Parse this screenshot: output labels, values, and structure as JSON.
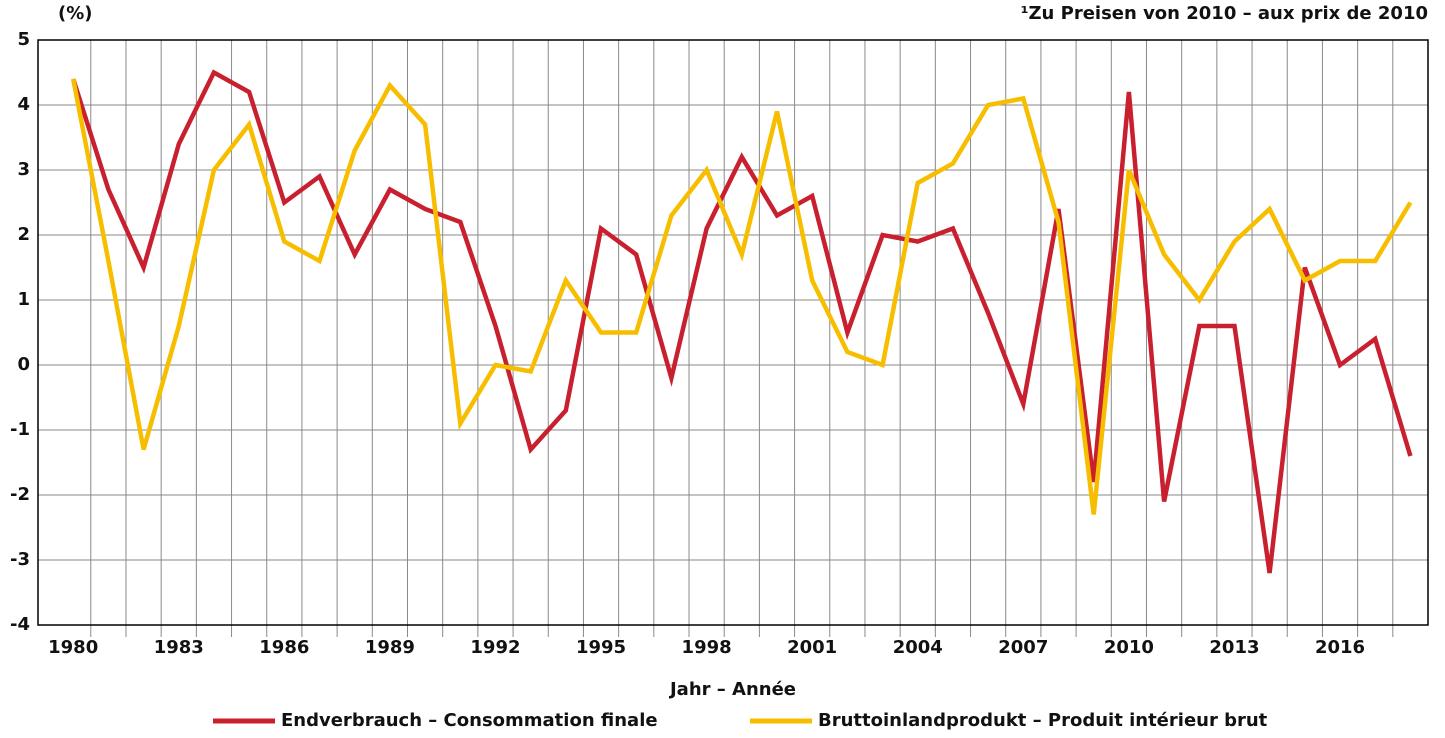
{
  "chart_data": {
    "type": "line",
    "y_label": "(%)",
    "note": "¹Zu Preisen von 2010 – aux prix de 2010",
    "x_label": "Jahr – Année",
    "x": [
      1980,
      1981,
      1982,
      1983,
      1984,
      1985,
      1986,
      1987,
      1988,
      1989,
      1990,
      1991,
      1992,
      1993,
      1994,
      1995,
      1996,
      1997,
      1998,
      1999,
      2000,
      2001,
      2002,
      2003,
      2004,
      2005,
      2006,
      2007,
      2008,
      2009,
      2010,
      2011,
      2012,
      2013,
      2014,
      2015,
      2016,
      2017,
      2018
    ],
    "series": [
      {
        "name": "Endverbrauch – Consommation finale",
        "color": "#c8202f",
        "values": [
          4.4,
          2.7,
          1.5,
          3.4,
          4.5,
          4.2,
          2.5,
          2.9,
          1.7,
          2.7,
          2.4,
          2.2,
          0.6,
          -1.3,
          -0.7,
          2.1,
          1.7,
          -0.2,
          2.1,
          3.2,
          2.3,
          2.6,
          0.5,
          2.0,
          1.9,
          2.1,
          0.8,
          -0.6,
          2.4,
          -1.8,
          4.2,
          -2.1,
          0.6,
          0.6,
          -3.2,
          1.5,
          0.0,
          0.4,
          -1.4
        ]
      },
      {
        "name": "Bruttoinlandprodukt – Produit intérieur brut",
        "color": "#f7be00",
        "values": [
          4.4,
          1.6,
          -1.3,
          0.6,
          3.0,
          3.7,
          1.9,
          1.6,
          3.3,
          4.3,
          3.7,
          -0.9,
          0.0,
          -0.1,
          1.3,
          0.5,
          0.5,
          2.3,
          3.0,
          1.7,
          3.9,
          1.3,
          0.2,
          0.0,
          2.8,
          3.1,
          4.0,
          4.1,
          2.2,
          -2.3,
          3.0,
          1.7,
          1.0,
          1.9,
          2.4,
          1.3,
          1.6,
          1.6,
          2.5
        ]
      }
    ],
    "xlim": [
      1979,
      2018.5
    ],
    "xticks": [
      1980,
      1983,
      1986,
      1989,
      1992,
      1995,
      1998,
      2001,
      2004,
      2007,
      2010,
      2013,
      2016
    ],
    "ylim": [
      -4,
      5
    ],
    "yticks": [
      -4,
      -3,
      -2,
      -1,
      0,
      1,
      2,
      3,
      4,
      5
    ],
    "grid": true
  }
}
